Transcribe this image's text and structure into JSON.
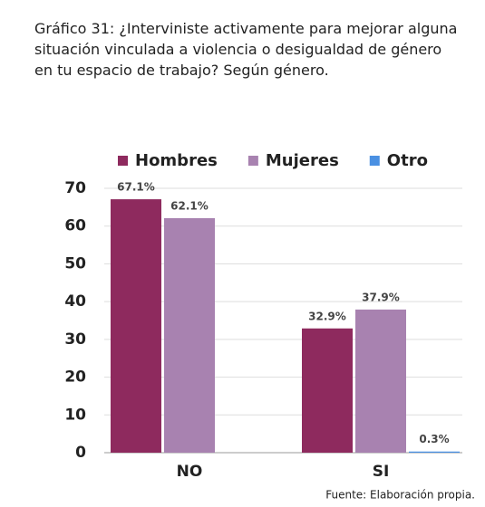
{
  "chart_data": {
    "type": "bar",
    "title": "Gráfico 31: ¿Interviniste activamente para mejorar alguna situación vinculada a violencia o desigualdad de género en tu espacio de trabajo? Según género.",
    "categories": [
      "NO",
      "SI"
    ],
    "series": [
      {
        "name": "Hombres",
        "color": "#8e2a5e",
        "values": [
          67.1,
          32.9
        ],
        "value_labels": [
          "67.1%",
          "32.9%"
        ]
      },
      {
        "name": "Mujeres",
        "color": "#a882b0",
        "values": [
          62.1,
          37.9
        ],
        "value_labels": [
          "62.1%",
          "37.9%"
        ]
      },
      {
        "name": "Otro",
        "color": "#4a90e2",
        "values": [
          null,
          0.3
        ],
        "value_labels": [
          null,
          "0.3%"
        ]
      }
    ],
    "ylim": [
      0,
      70
    ],
    "yticks": [
      0,
      10,
      20,
      30,
      40,
      50,
      60,
      70
    ],
    "grid": true,
    "legend": "top",
    "source": "Fuente: Elaboración propia."
  }
}
